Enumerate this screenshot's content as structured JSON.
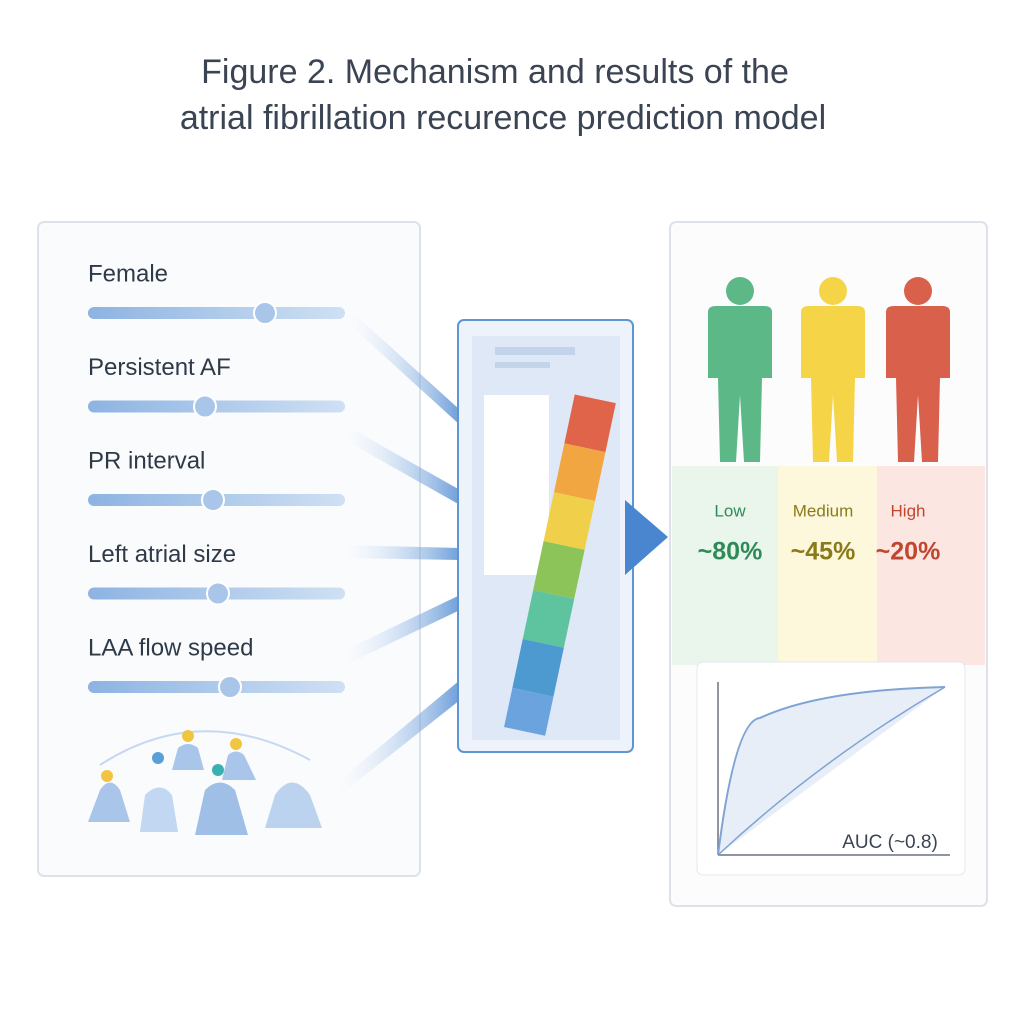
{
  "title": {
    "line1": "Figure 2. Mechanism and results of the",
    "line2": "atrial fibrillation recurence prediction model"
  },
  "features": [
    "Female",
    "Persistent AF",
    "PR interval",
    "Left atrial size",
    "LAA flow speed"
  ],
  "risk_groups": [
    {
      "label": "Low",
      "percent": "~80%"
    },
    {
      "label": "Medium",
      "percent": "~45%"
    },
    {
      "label": "High",
      "percent": "~20%"
    }
  ],
  "roc": {
    "label": "AUC (~0.8)"
  }
}
